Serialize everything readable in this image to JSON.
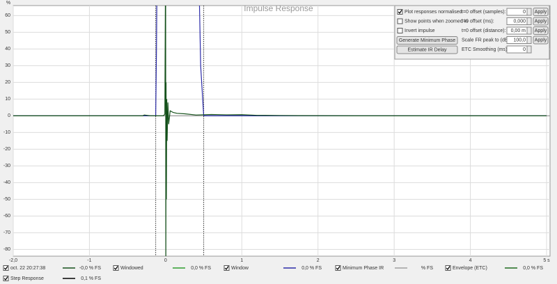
{
  "chart_data": {
    "type": "line",
    "title": "Impulse Response",
    "y_label": "%",
    "xlim": [
      -2,
      5
    ],
    "ylim": [
      -84,
      66
    ],
    "xticks": [
      {
        "value": -2,
        "label": "-2,0"
      },
      -1,
      0,
      1,
      2,
      3,
      4,
      {
        "value": 5,
        "label": "5 s"
      }
    ],
    "yticks": [
      60,
      50,
      40,
      30,
      20,
      10,
      0,
      -10,
      -20,
      -30,
      -40,
      -50,
      -60,
      -70,
      -80
    ],
    "grid": true,
    "window_markers": [
      -0.13,
      0.5
    ],
    "series": [
      {
        "name": "oct. 22 20:27:38",
        "color": "#14501a",
        "checked": true,
        "readout": "-0,0 % FS",
        "x": [
          -2,
          -0.3,
          -0.28,
          -0.2,
          -0.03,
          -0.01,
          0,
          0.003,
          0.006,
          0.01,
          0.015,
          0.02,
          0.03,
          0.04,
          0.06,
          0.1,
          0.15,
          0.25,
          0.4,
          0.6,
          0.8,
          1.0,
          1.2,
          1.5,
          1.75,
          2.5,
          5
        ],
        "values": [
          0,
          0,
          0.5,
          0,
          0,
          1,
          100,
          -90,
          20,
          -50,
          10,
          -15,
          8,
          -5,
          3,
          2,
          1.5,
          1.2,
          0.5,
          0.8,
          0.6,
          0.7,
          0.3,
          0.2,
          0.1,
          0,
          0
        ]
      },
      {
        "name": "Windowed",
        "color": "#2e9e2e",
        "checked": true,
        "readout": "0,0 % FS"
      },
      {
        "name": "Window",
        "color": "#2a2aa8",
        "checked": true,
        "readout": "0,0 % FS",
        "x": [
          -2,
          -0.13,
          -0.12,
          -0.11,
          0.43,
          0.46,
          0.5,
          5
        ],
        "values": [
          0,
          0,
          40,
          100,
          100,
          30,
          0,
          0
        ]
      },
      {
        "name": "Minimum Phase IR",
        "color": "#a0a0a0",
        "checked": true,
        "readout": "% FS"
      },
      {
        "name": "Envelope (ETC)",
        "color": "#1e6b1e",
        "checked": true,
        "readout": "0,0 % FS"
      },
      {
        "name": "Step Response",
        "color": "#000000",
        "checked": true,
        "readout": "0,1 % FS"
      }
    ]
  },
  "controls": {
    "checkboxes": [
      {
        "label": "Plot responses normalised",
        "checked": true
      },
      {
        "label": "Show points when zoomed in",
        "checked": false
      },
      {
        "label": "Invert impulse",
        "checked": false
      }
    ],
    "buttons": [
      "Generate Minimum Phase",
      "Estimate IR Delay"
    ],
    "apply_label": "Apply",
    "fields": [
      {
        "label": "t=0 offset (samples):",
        "value": "0",
        "has_apply": true
      },
      {
        "label": "t=0 offset (ms):",
        "value": "0,000",
        "has_apply": true
      },
      {
        "label": "t=0 offset (distance):",
        "value": "0,00 m",
        "has_apply": true
      },
      {
        "label": "Scale FR peak to (dB SPL):",
        "value": "100,0",
        "has_apply": true
      },
      {
        "label": "ETC Smoothing (ms):",
        "value": "0",
        "has_apply": false
      }
    ]
  }
}
